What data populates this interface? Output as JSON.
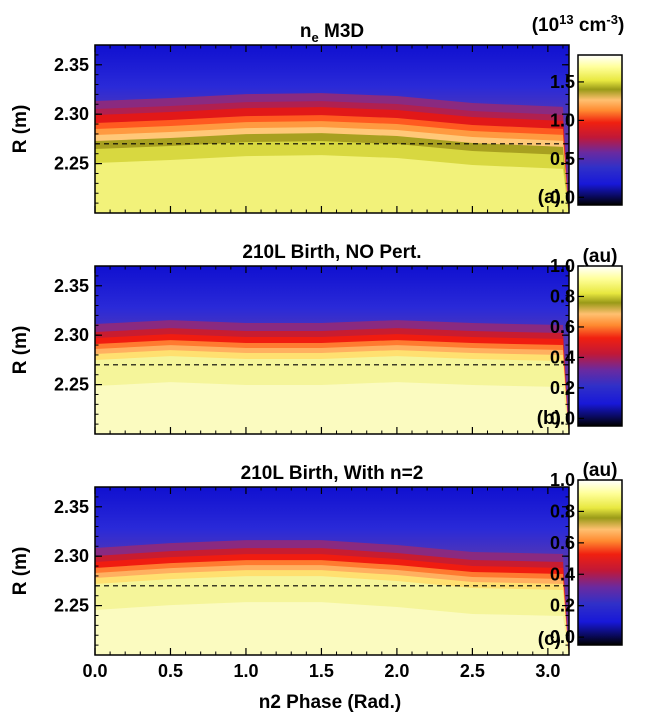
{
  "figure": {
    "xlabel": "n2 Phase (Rad.)",
    "ylabel": "R (m)",
    "x_ticks": [
      "0.0",
      "0.5",
      "1.0",
      "1.5",
      "2.0",
      "2.5",
      "3.0"
    ],
    "y_ticks": [
      "2.35",
      "2.30",
      "2.25"
    ]
  },
  "chart_data": [
    {
      "type": "heatmap",
      "panel": "(a)",
      "title_main": "n",
      "title_sub": "e",
      "title_rest": " M3D",
      "colorbar_unit_main": "(10",
      "colorbar_unit_exp": "13",
      "colorbar_unit_mid": " cm",
      "colorbar_unit_exp2": "-3",
      "colorbar_unit_end": ")",
      "xlim": [
        0.0,
        3.14
      ],
      "ylim": [
        2.2,
        2.37
      ],
      "clim": [
        -0.1,
        1.85
      ],
      "colorbar_ticks": [
        "0.0",
        "0.5",
        "1.0",
        "1.5"
      ],
      "colorbar_tick_values": [
        0.0,
        0.5,
        1.0,
        1.5
      ],
      "reference_line_R": 2.27,
      "front_R": [
        2.285,
        2.288,
        2.292,
        2.293,
        2.29,
        2.283,
        2.279
      ],
      "front_phase": [
        0.0,
        0.5,
        1.0,
        1.5,
        2.0,
        2.5,
        3.1
      ],
      "colormap": "blue-red-yellow-white"
    },
    {
      "type": "heatmap",
      "panel": "(b)",
      "title": "210L Birth, NO Pert.",
      "colorbar_unit": "(au)",
      "xlim": [
        0.0,
        3.14
      ],
      "ylim": [
        2.2,
        2.37
      ],
      "clim": [
        -0.05,
        1.0
      ],
      "colorbar_ticks": [
        "0.0",
        "0.2",
        "0.4",
        "0.6",
        "0.8",
        "1.0"
      ],
      "colorbar_tick_values": [
        0.0,
        0.2,
        0.4,
        0.6,
        0.8,
        1.0
      ],
      "reference_line_R": 2.27,
      "front_R": [
        2.289,
        2.293,
        2.29,
        2.29,
        2.293,
        2.29,
        2.288
      ],
      "front_phase": [
        0.0,
        0.5,
        1.0,
        1.5,
        2.0,
        2.5,
        3.1
      ],
      "colormap": "blue-red-yellow-white"
    },
    {
      "type": "heatmap",
      "panel": "(c)",
      "title": "210L Birth, With n=2",
      "colorbar_unit": "(au)",
      "xlim": [
        0.0,
        3.14
      ],
      "ylim": [
        2.2,
        2.37
      ],
      "clim": [
        -0.05,
        1.0
      ],
      "colorbar_ticks": [
        "0.0",
        "0.2",
        "0.4",
        "0.6",
        "0.8",
        "1.0"
      ],
      "colorbar_tick_values": [
        0.0,
        0.2,
        0.4,
        0.6,
        0.8,
        1.0
      ],
      "reference_line_R": 2.27,
      "front_R": [
        2.286,
        2.291,
        2.294,
        2.294,
        2.289,
        2.282,
        2.28
      ],
      "front_phase": [
        0.0,
        0.5,
        1.0,
        1.5,
        2.0,
        2.5,
        3.1
      ],
      "colormap": "blue-red-yellow-white"
    }
  ]
}
